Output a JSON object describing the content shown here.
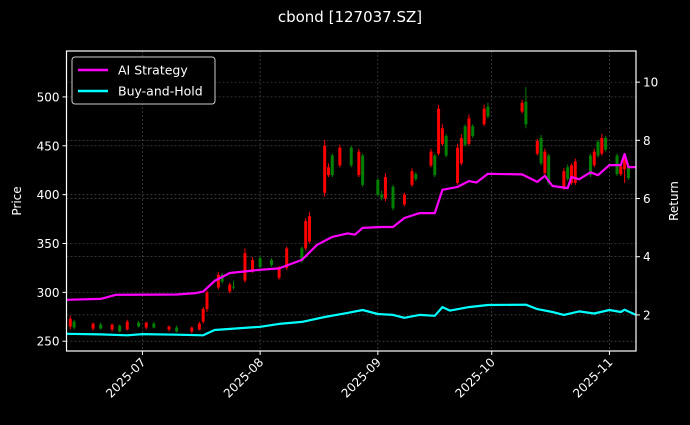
{
  "chart_data": {
    "type": "candlestick+line",
    "title": "cbond [127037.SZ]",
    "ylabel_left": "Price",
    "ylabel_right": "Return",
    "xlabel": "",
    "xlim": [
      "2025-06-11",
      "2025-11-08"
    ],
    "ylim_left": [
      240,
      547
    ],
    "ylim_right": [
      0.76,
      11.07
    ],
    "x_ticks": [
      "2025-07-01",
      "2025-08-01",
      "2025-09-01",
      "2025-10-01",
      "2025-11-01"
    ],
    "x_tick_labels": [
      "2025-07",
      "2025-08",
      "2025-09",
      "2025-10",
      "2025-11"
    ],
    "y_ticks_left": [
      250,
      300,
      350,
      400,
      450,
      500
    ],
    "y_ticks_right": [
      2,
      4,
      6,
      8,
      10
    ],
    "grid": true,
    "legend_position": "top-left",
    "colors": {
      "up": "#ff0000",
      "down": "#008000",
      "strategy": "#ff00ff",
      "buyhold": "#00ffff",
      "background": "#000000"
    },
    "candles": [
      [
        "2025-06-12",
        265,
        276,
        262,
        273
      ],
      [
        "2025-06-13",
        270,
        272,
        262,
        264
      ],
      [
        "2025-06-18",
        263,
        269,
        261,
        268
      ],
      [
        "2025-06-20",
        267,
        269,
        262,
        263
      ],
      [
        "2025-06-23",
        262,
        268,
        260,
        267
      ],
      [
        "2025-06-25",
        266,
        267,
        259,
        260
      ],
      [
        "2025-06-27",
        262,
        272,
        261,
        270
      ],
      [
        "2025-06-30",
        269,
        271,
        264,
        265
      ],
      [
        "2025-07-02",
        264,
        270,
        262,
        269
      ],
      [
        "2025-07-04",
        268,
        270,
        263,
        264
      ],
      [
        "2025-07-08",
        262,
        266,
        260,
        265
      ],
      [
        "2025-07-10",
        264,
        266,
        259,
        260
      ],
      [
        "2025-07-14",
        260,
        265,
        258,
        264
      ],
      [
        "2025-07-16",
        262,
        270,
        261,
        268
      ],
      [
        "2025-07-17",
        270,
        285,
        268,
        283
      ],
      [
        "2025-07-18",
        283,
        302,
        280,
        300
      ],
      [
        "2025-07-21",
        305,
        321,
        303,
        318
      ],
      [
        "2025-07-22",
        318,
        320,
        309,
        311
      ],
      [
        "2025-07-24",
        301,
        310,
        299,
        308
      ],
      [
        "2025-07-25",
        306,
        312,
        303,
        305
      ],
      [
        "2025-07-28",
        312,
        345,
        310,
        340
      ],
      [
        "2025-07-30",
        322,
        336,
        320,
        333
      ],
      [
        "2025-08-01",
        335,
        337,
        324,
        326
      ],
      [
        "2025-08-04",
        333,
        335,
        326,
        328
      ],
      [
        "2025-08-06",
        315,
        327,
        313,
        325
      ],
      [
        "2025-08-08",
        325,
        347,
        323,
        345
      ],
      [
        "2025-08-12",
        345,
        347,
        330,
        332
      ],
      [
        "2025-08-13",
        345,
        376,
        343,
        373
      ],
      [
        "2025-08-14",
        352,
        382,
        350,
        378
      ],
      [
        "2025-08-18",
        402,
        456,
        398,
        450
      ],
      [
        "2025-08-19",
        420,
        432,
        418,
        428
      ],
      [
        "2025-08-20",
        440,
        442,
        418,
        420
      ],
      [
        "2025-08-22",
        430,
        451,
        428,
        448
      ],
      [
        "2025-08-25",
        448,
        450,
        428,
        430
      ],
      [
        "2025-08-27",
        420,
        447,
        418,
        444
      ],
      [
        "2025-08-28",
        440,
        442,
        408,
        410
      ],
      [
        "2025-09-01",
        415,
        417,
        398,
        400
      ],
      [
        "2025-09-02",
        400,
        404,
        394,
        397
      ],
      [
        "2025-09-03",
        396,
        422,
        393,
        418
      ],
      [
        "2025-09-05",
        408,
        410,
        384,
        386
      ],
      [
        "2025-09-08",
        390,
        402,
        388,
        400
      ],
      [
        "2025-09-10",
        410,
        427,
        408,
        424
      ],
      [
        "2025-09-11",
        421,
        423,
        414,
        416
      ],
      [
        "2025-09-15",
        430,
        447,
        428,
        444
      ],
      [
        "2025-09-16",
        440,
        442,
        418,
        420
      ],
      [
        "2025-09-17",
        442,
        492,
        440,
        488
      ],
      [
        "2025-09-18",
        452,
        472,
        450,
        468
      ],
      [
        "2025-09-19",
        460,
        462,
        438,
        440
      ],
      [
        "2025-09-22",
        412,
        452,
        410,
        448
      ],
      [
        "2025-09-23",
        432,
        462,
        430,
        458
      ],
      [
        "2025-09-24",
        470,
        472,
        449,
        451
      ],
      [
        "2025-09-25",
        452,
        482,
        450,
        478
      ],
      [
        "2025-09-26",
        470,
        472,
        458,
        460
      ],
      [
        "2025-09-29",
        472,
        492,
        470,
        488
      ],
      [
        "2025-09-30",
        490,
        494,
        478,
        480
      ],
      [
        "2025-10-09",
        485,
        497,
        483,
        494
      ],
      [
        "2025-10-10",
        495,
        510,
        468,
        472
      ],
      [
        "2025-10-13",
        442,
        457,
        440,
        455
      ],
      [
        "2025-10-14",
        458,
        461,
        430,
        432
      ],
      [
        "2025-10-15",
        422,
        447,
        420,
        444
      ],
      [
        "2025-10-16",
        440,
        442,
        410,
        412
      ],
      [
        "2025-10-20",
        407,
        427,
        405,
        424
      ],
      [
        "2025-10-21",
        428,
        431,
        414,
        416
      ],
      [
        "2025-10-22",
        412,
        432,
        410,
        430
      ],
      [
        "2025-10-23",
        412,
        437,
        410,
        434
      ],
      [
        "2025-10-27",
        440,
        442,
        418,
        420
      ],
      [
        "2025-10-28",
        430,
        447,
        428,
        444
      ],
      [
        "2025-10-29",
        454,
        456,
        438,
        440
      ],
      [
        "2025-10-30",
        442,
        462,
        440,
        458
      ],
      [
        "2025-10-31",
        458,
        460,
        444,
        446
      ],
      [
        "2025-11-03",
        440,
        442,
        419,
        421
      ],
      [
        "2025-11-04",
        421,
        431,
        419,
        429
      ],
      [
        "2025-11-05",
        426,
        441,
        412,
        438
      ],
      [
        "2025-11-06",
        430,
        432,
        415,
        417
      ]
    ],
    "series": [
      {
        "name": "AI Strategy",
        "axis": "right",
        "x": [
          "2025-06-11",
          "2025-06-20",
          "2025-06-24",
          "2025-07-10",
          "2025-07-15",
          "2025-07-17",
          "2025-07-20",
          "2025-07-24",
          "2025-08-01",
          "2025-08-06",
          "2025-08-12",
          "2025-08-16",
          "2025-08-20",
          "2025-08-24",
          "2025-08-26",
          "2025-08-28",
          "2025-09-02",
          "2025-09-05",
          "2025-09-08",
          "2025-09-12",
          "2025-09-16",
          "2025-09-18",
          "2025-09-22",
          "2025-09-25",
          "2025-09-27",
          "2025-09-30",
          "2025-10-09",
          "2025-10-13",
          "2025-10-15",
          "2025-10-17",
          "2025-10-21",
          "2025-10-22",
          "2025-10-24",
          "2025-10-27",
          "2025-10-29",
          "2025-11-01",
          "2025-11-04",
          "2025-11-05",
          "2025-11-06",
          "2025-11-08"
        ],
        "y": [
          2.52,
          2.55,
          2.69,
          2.7,
          2.75,
          2.8,
          3.17,
          3.44,
          3.55,
          3.6,
          3.89,
          4.41,
          4.68,
          4.8,
          4.76,
          4.99,
          5.02,
          5.02,
          5.33,
          5.5,
          5.5,
          6.3,
          6.4,
          6.6,
          6.55,
          6.85,
          6.83,
          6.57,
          6.78,
          6.43,
          6.36,
          6.74,
          6.66,
          6.9,
          6.8,
          7.15,
          7.15,
          7.53,
          7.08,
          7.08
        ]
      },
      {
        "name": "Buy-and-Hold",
        "axis": "right",
        "x": [
          "2025-06-11",
          "2025-06-20",
          "2025-06-27",
          "2025-07-01",
          "2025-07-10",
          "2025-07-17",
          "2025-07-20",
          "2025-08-01",
          "2025-08-06",
          "2025-08-12",
          "2025-08-18",
          "2025-08-24",
          "2025-08-28",
          "2025-09-01",
          "2025-09-05",
          "2025-09-08",
          "2025-09-12",
          "2025-09-16",
          "2025-09-18",
          "2025-09-20",
          "2025-09-25",
          "2025-09-30",
          "2025-10-10",
          "2025-10-13",
          "2025-10-17",
          "2025-10-20",
          "2025-10-24",
          "2025-10-28",
          "2025-11-01",
          "2025-11-04",
          "2025-11-05",
          "2025-11-08"
        ],
        "y": [
          1.35,
          1.33,
          1.3,
          1.34,
          1.32,
          1.3,
          1.48,
          1.59,
          1.69,
          1.76,
          1.93,
          2.07,
          2.17,
          2.03,
          2.0,
          1.9,
          2.0,
          1.97,
          2.27,
          2.15,
          2.27,
          2.34,
          2.35,
          2.2,
          2.1,
          2.0,
          2.12,
          2.05,
          2.17,
          2.1,
          2.18,
          2.0
        ]
      }
    ]
  }
}
